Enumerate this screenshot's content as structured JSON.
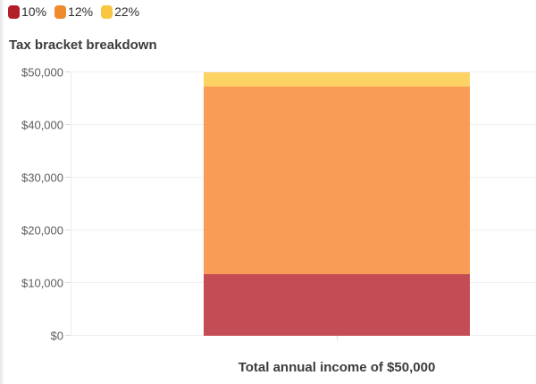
{
  "title": "Tax bracket breakdown",
  "chart_data": {
    "type": "bar",
    "stacked": true,
    "title": "Tax bracket breakdown",
    "xlabel": "Total annual income of $50,000",
    "categories": [
      "Total annual income of $50,000"
    ],
    "ylabel": "",
    "ylim": [
      0,
      50000
    ],
    "yticks": [
      0,
      10000,
      20000,
      30000,
      40000,
      50000
    ],
    "ytick_labels": [
      "$0",
      "$10,000",
      "$20,000",
      "$30,000",
      "$40,000",
      "$50,000"
    ],
    "grid": true,
    "legend_position": "top-left",
    "series": [
      {
        "name": "10%",
        "value": 11600,
        "bar_color": "#c44d55",
        "legend_color": "#b31f29"
      },
      {
        "name": "12%",
        "value": 35550,
        "bar_color": "#f99d56",
        "legend_color": "#ef8a2e"
      },
      {
        "name": "22%",
        "value": 2850,
        "bar_color": "#fcd263",
        "legend_color": "#f8c642"
      }
    ]
  }
}
